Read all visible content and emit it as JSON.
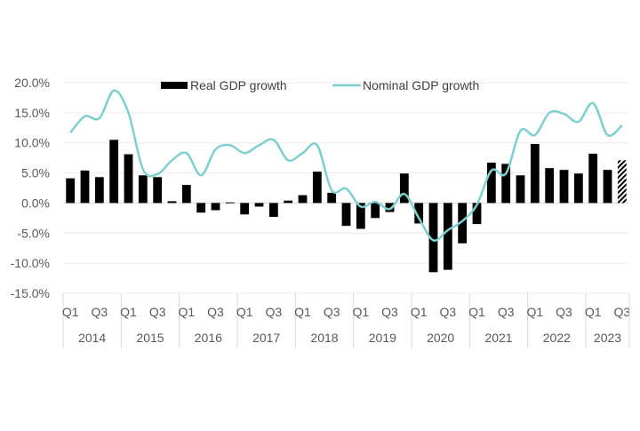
{
  "chart_data": {
    "type": "bar",
    "title": "",
    "xlabel": "",
    "ylabel": "",
    "ylim": [
      -15,
      20
    ],
    "yticks": [
      -15,
      -10,
      -5,
      0,
      5,
      10,
      15,
      20
    ],
    "ytick_labels": [
      "-15.0%",
      "-10.0%",
      "-5.0%",
      "0.0%",
      "5.0%",
      "10.0%",
      "15.0%",
      "20.0%"
    ],
    "grid": "horizontal",
    "legend_position": "top-center",
    "years": [
      "2014",
      "2015",
      "2016",
      "2017",
      "2018",
      "2019",
      "2020",
      "2021",
      "2022",
      "2023"
    ],
    "quarter_labels": [
      "Q1",
      "Q3"
    ],
    "categories": [
      "2014 Q1",
      "2014 Q2",
      "2014 Q3",
      "2014 Q4",
      "2015 Q1",
      "2015 Q2",
      "2015 Q3",
      "2015 Q4",
      "2016 Q1",
      "2016 Q2",
      "2016 Q3",
      "2016 Q4",
      "2017 Q1",
      "2017 Q2",
      "2017 Q3",
      "2017 Q4",
      "2018 Q1",
      "2018 Q2",
      "2018 Q3",
      "2018 Q4",
      "2019 Q1",
      "2019 Q2",
      "2019 Q3",
      "2019 Q4",
      "2020 Q1",
      "2020 Q2",
      "2020 Q3",
      "2020 Q4",
      "2021 Q1",
      "2021 Q2",
      "2021 Q3",
      "2021 Q4",
      "2022 Q1",
      "2022 Q2",
      "2022 Q3",
      "2022 Q4",
      "2023 Q1",
      "2023 Q2",
      "2023 Q3"
    ],
    "series": [
      {
        "name": "Real GDP growth",
        "type": "bar",
        "color": "#000000",
        "hatched_last": true,
        "values": [
          4.1,
          5.4,
          4.3,
          10.5,
          8.1,
          4.6,
          4.3,
          0.3,
          3.0,
          -1.6,
          -1.2,
          0.1,
          -1.9,
          -0.6,
          -2.3,
          0.4,
          1.3,
          5.2,
          1.7,
          -3.8,
          -4.3,
          -2.5,
          -1.5,
          4.9,
          -3.4,
          -11.5,
          -11.1,
          -6.7,
          -3.5,
          6.7,
          6.5,
          4.6,
          9.8,
          5.8,
          5.5,
          4.9,
          8.2,
          5.5,
          7.1
        ]
      },
      {
        "name": "Nominal GDP growth",
        "type": "line",
        "color": "#7fcfcf",
        "values": [
          11.7,
          14.4,
          14.1,
          18.7,
          15.0,
          5.6,
          4.8,
          7.1,
          8.3,
          4.6,
          8.9,
          9.6,
          8.3,
          9.6,
          10.5,
          7.1,
          8.3,
          9.6,
          2.1,
          2.4,
          -0.6,
          0.2,
          -1.0,
          1.5,
          -2.5,
          -6.2,
          -4.5,
          -3.0,
          -0.3,
          5.4,
          4.9,
          12.0,
          11.3,
          15.0,
          14.8,
          13.5,
          16.6,
          11.3,
          12.9
        ]
      }
    ]
  }
}
